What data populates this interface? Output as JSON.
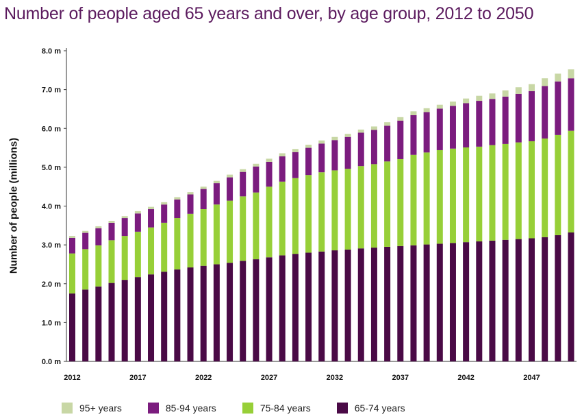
{
  "title": "Number of people aged 65 years and over, by age group, 2012 to 2050",
  "colors": {
    "95+ years": "#c8d7a5",
    "85-94 years": "#7b1c7e",
    "75-84 years": "#97cf38",
    "65-74 years": "#4a0a46"
  },
  "legend": [
    "95+ years",
    "85-94 years",
    "75-84 years",
    "65-74 years"
  ],
  "chart_data": {
    "type": "bar",
    "stacked": true,
    "title": "Number of people aged 65 years and over, by age group, 2012 to 2050",
    "xlabel": "",
    "ylabel": "Number of people (millions)",
    "ylim": [
      0,
      8
    ],
    "y_ticks": [
      "0.0 m",
      "1.0 m",
      "2.0 m",
      "3.0 m",
      "4.0 m",
      "5.0 m",
      "6.0 m",
      "7.0 m",
      "8.0 m"
    ],
    "x_tick_labels": [
      "2012",
      "2017",
      "2022",
      "2027",
      "2032",
      "2037",
      "2042",
      "2047"
    ],
    "categories": [
      2012,
      2013,
      2014,
      2015,
      2016,
      2017,
      2018,
      2019,
      2020,
      2021,
      2022,
      2023,
      2024,
      2025,
      2026,
      2027,
      2028,
      2029,
      2030,
      2031,
      2032,
      2033,
      2034,
      2035,
      2036,
      2037,
      2038,
      2039,
      2040,
      2041,
      2042,
      2043,
      2044,
      2045,
      2046,
      2047,
      2048,
      2049,
      2050
    ],
    "grid": false,
    "legend_position": "bottom",
    "series": [
      {
        "name": "65-74 years",
        "values": [
          1.75,
          1.85,
          1.93,
          2.02,
          2.1,
          2.17,
          2.24,
          2.31,
          2.37,
          2.42,
          2.46,
          2.5,
          2.54,
          2.59,
          2.63,
          2.68,
          2.73,
          2.77,
          2.8,
          2.83,
          2.86,
          2.88,
          2.91,
          2.93,
          2.95,
          2.97,
          2.99,
          3.01,
          3.03,
          3.05,
          3.07,
          3.09,
          3.11,
          3.13,
          3.15,
          3.17,
          3.2,
          3.25,
          3.32
        ]
      },
      {
        "name": "75-84 years",
        "values": [
          1.03,
          1.04,
          1.06,
          1.1,
          1.13,
          1.17,
          1.21,
          1.26,
          1.32,
          1.38,
          1.46,
          1.54,
          1.6,
          1.66,
          1.72,
          1.82,
          1.9,
          1.95,
          2.0,
          2.04,
          2.06,
          2.08,
          2.12,
          2.15,
          2.2,
          2.24,
          2.33,
          2.37,
          2.41,
          2.43,
          2.44,
          2.44,
          2.46,
          2.47,
          2.49,
          2.5,
          2.54,
          2.58,
          2.62
        ]
      },
      {
        "name": "85-94 years",
        "values": [
          0.4,
          0.42,
          0.44,
          0.45,
          0.46,
          0.47,
          0.47,
          0.47,
          0.48,
          0.5,
          0.52,
          0.55,
          0.6,
          0.63,
          0.67,
          0.64,
          0.65,
          0.67,
          0.7,
          0.74,
          0.78,
          0.82,
          0.86,
          0.88,
          0.92,
          0.99,
          1.02,
          1.04,
          1.07,
          1.1,
          1.14,
          1.18,
          1.19,
          1.22,
          1.25,
          1.29,
          1.35,
          1.38,
          1.35
        ]
      },
      {
        "name": "95+ years",
        "values": [
          0.05,
          0.05,
          0.05,
          0.05,
          0.05,
          0.06,
          0.06,
          0.06,
          0.06,
          0.06,
          0.06,
          0.06,
          0.07,
          0.07,
          0.07,
          0.08,
          0.08,
          0.08,
          0.08,
          0.08,
          0.08,
          0.08,
          0.08,
          0.09,
          0.09,
          0.09,
          0.1,
          0.1,
          0.1,
          0.11,
          0.12,
          0.13,
          0.14,
          0.16,
          0.17,
          0.18,
          0.2,
          0.2,
          0.23
        ]
      }
    ]
  }
}
